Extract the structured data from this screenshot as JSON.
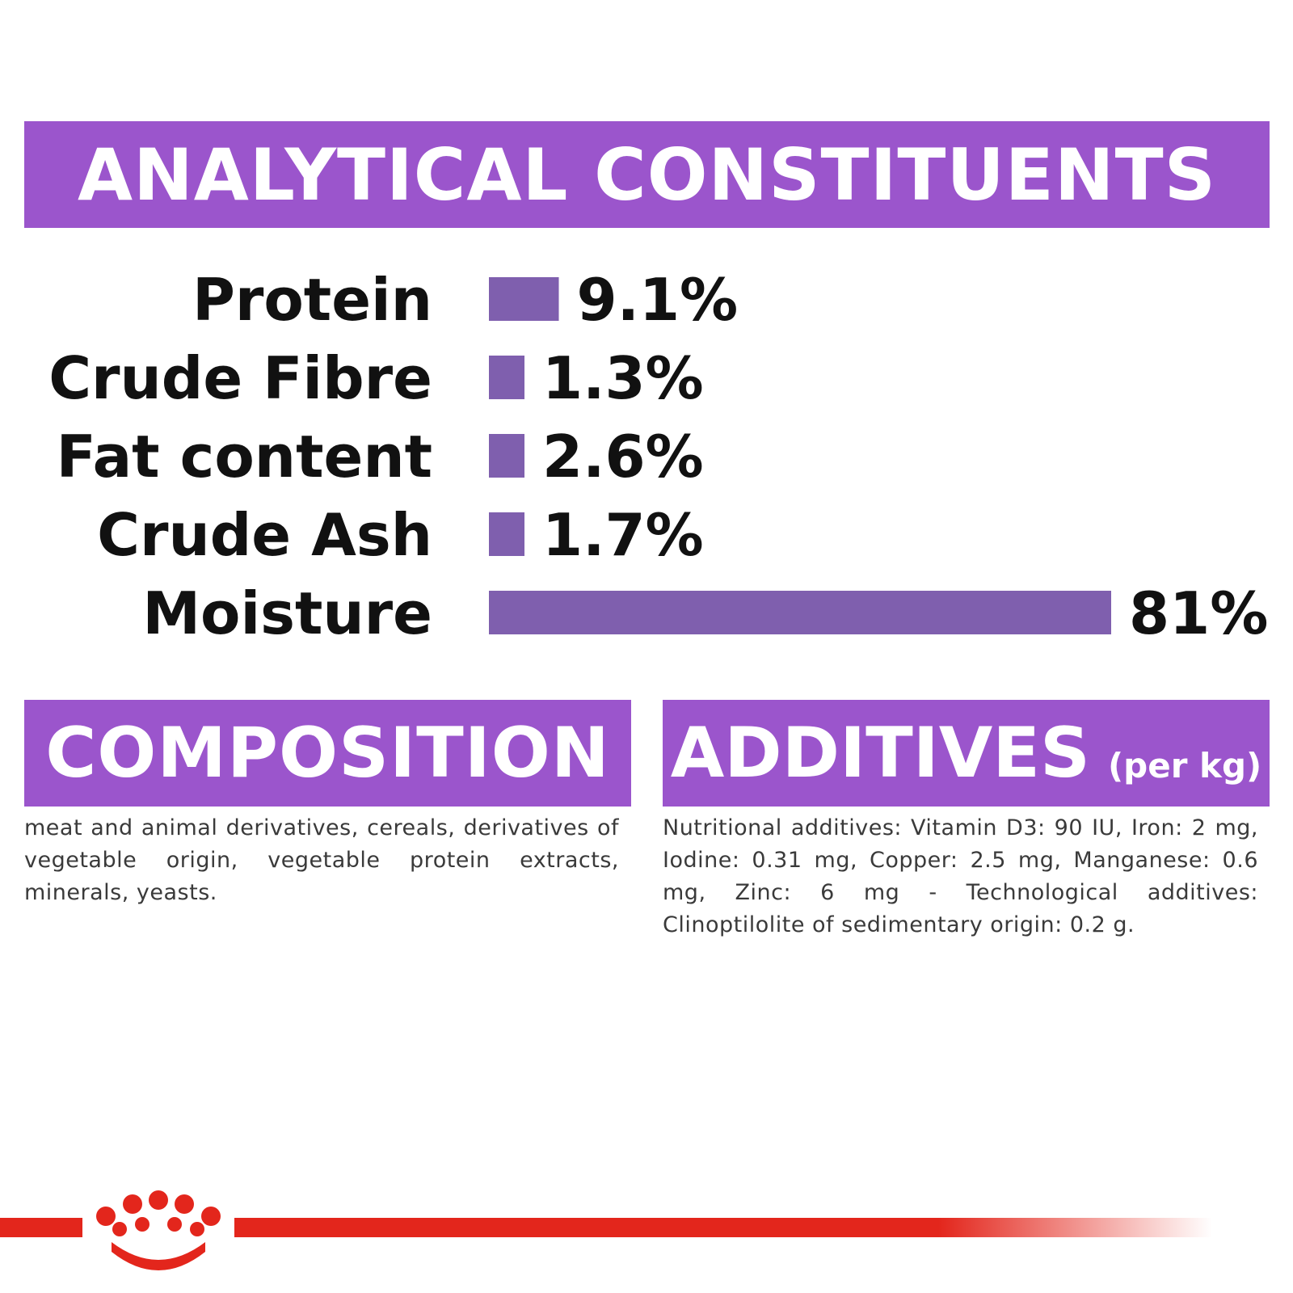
{
  "colors": {
    "banner": "#9b55cc",
    "bar": "#7f5fae",
    "footer_red": "#e3261c",
    "text": "#111111"
  },
  "sections": {
    "analytical": {
      "title": "ANALYTICAL CONSTITUENTS"
    },
    "composition": {
      "title": "COMPOSITION",
      "text": "meat and animal derivatives, cereals, derivatives of vegetable origin, vegetable protein extracts, minerals, yeasts."
    },
    "additives": {
      "title": "ADDITIVES",
      "unit": "(per kg)",
      "text": "Nutritional additives: Vitamin D3: 90 IU, Iron: 2 mg, Iodine: 0.31 mg, Copper: 2.5 mg, Manganese: 0.6 mg, Zinc: 6 mg - Technological additives: Clinoptilolite of sedimentary origin: 0.2 g."
    }
  },
  "chart_data": {
    "type": "bar",
    "orientation": "horizontal",
    "categories": [
      "Protein",
      "Crude Fibre",
      "Fat content",
      "Crude Ash",
      "Moisture"
    ],
    "values": [
      9.1,
      1.3,
      2.6,
      1.7,
      81
    ],
    "value_labels": [
      "9.1%",
      "1.3%",
      "2.6%",
      "1.7%",
      "81%"
    ],
    "unit": "%"
  },
  "footer": {
    "logo": "crown-icon"
  }
}
